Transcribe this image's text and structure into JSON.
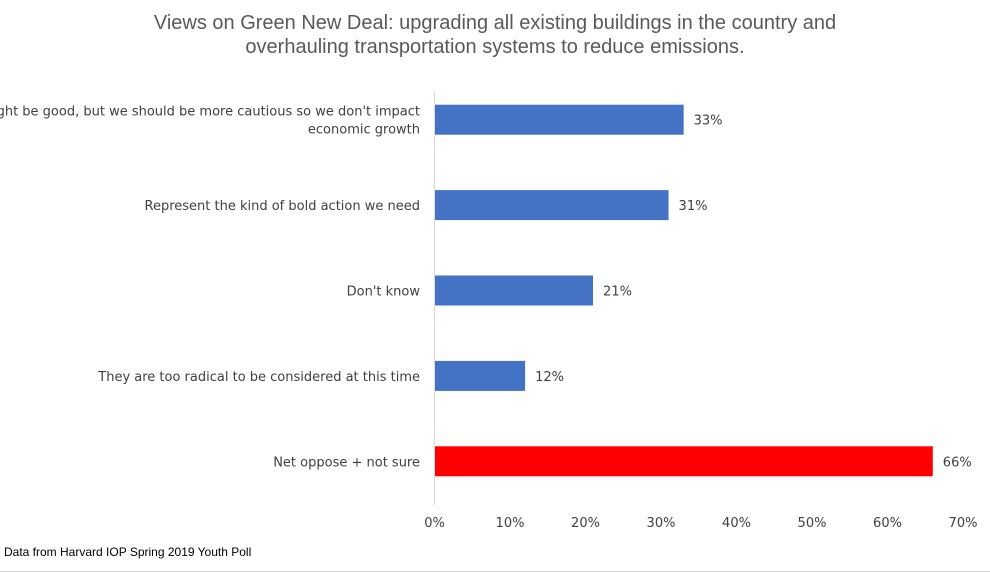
{
  "chart_data": {
    "type": "bar",
    "orientation": "horizontal",
    "title_lines": [
      "Views on Green New Deal: upgrading all existing buildings in the country and",
      "overhauling transportation systems to reduce emissions."
    ],
    "categories": [
      [
        "Might be good, but we should be more cautious so we don't impact",
        "economic growth"
      ],
      [
        "Represent the kind of bold action we need"
      ],
      [
        "Don't know"
      ],
      [
        "They are too radical to be considered at this time"
      ],
      [
        "Net oppose + not sure"
      ]
    ],
    "values": [
      33,
      31,
      21,
      12,
      66
    ],
    "data_labels": [
      "33%",
      "31%",
      "21%",
      "12%",
      "66%"
    ],
    "bar_colors": [
      "#4472C4",
      "#4472C4",
      "#4472C4",
      "#4472C4",
      "#FF0000"
    ],
    "xlim": [
      0,
      70
    ],
    "xticks": [
      "0%",
      "10%",
      "20%",
      "30%",
      "40%",
      "50%",
      "60%",
      "70%"
    ],
    "grid": false,
    "source": "Data from Harvard IOP Spring 2019 Youth Poll"
  }
}
